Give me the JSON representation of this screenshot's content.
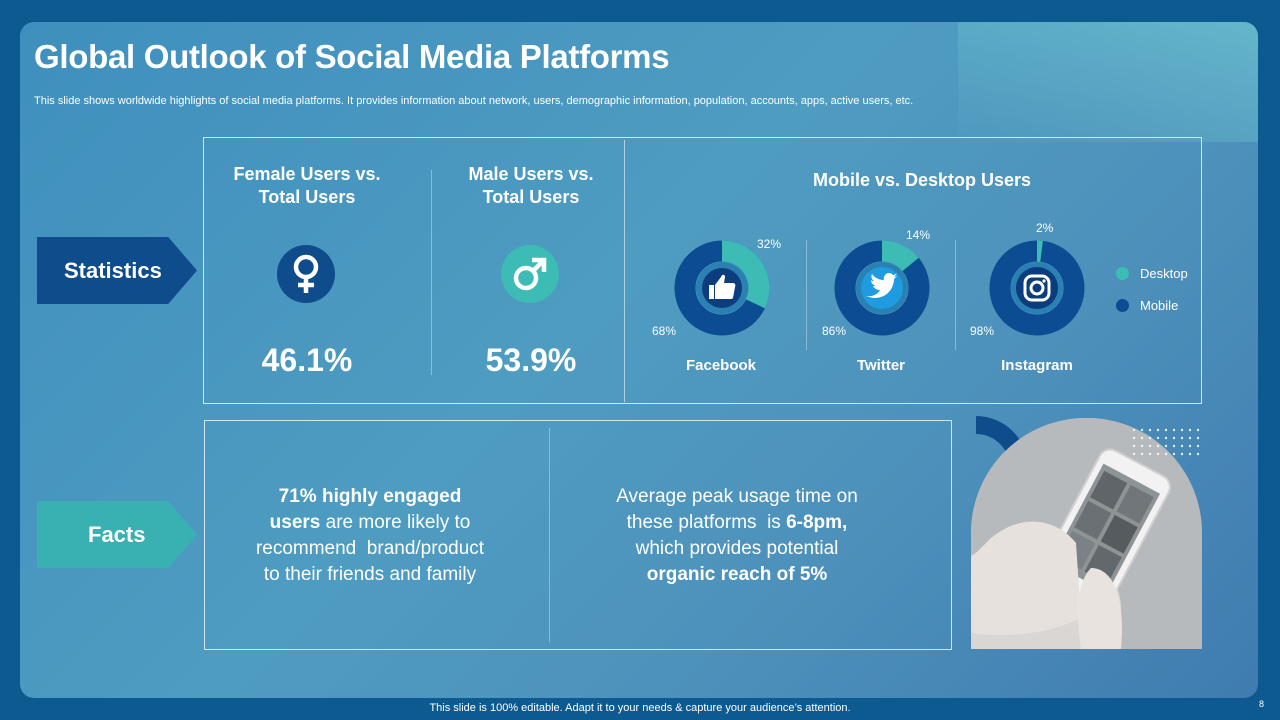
{
  "slide": {
    "title": "Global Outlook of Social Media Platforms",
    "subtitle": "This slide shows worldwide highlights of social media platforms. It provides information about network, users, demographic information, population, accounts, apps, active users, etc.",
    "footer": "This slide is 100% editable. Adapt it to your needs & capture your audience’s attention.",
    "page_number": "8"
  },
  "labels": {
    "statistics": "Statistics",
    "facts": "Facts"
  },
  "gender": {
    "female": {
      "heading_line1": "Female Users vs.",
      "heading_line2": "Total Users",
      "value": "46.1%",
      "icon": "female-symbol-icon"
    },
    "male": {
      "heading_line1": "Male Users vs.",
      "heading_line2": "Total Users",
      "value": "53.9%",
      "icon": "male-symbol-icon"
    }
  },
  "facts": {
    "left": {
      "bold1": "71% highly engaged",
      "bold2": "users",
      "rest2": " are more likely to",
      "line3": "recommend  brand/product",
      "line4": "to their friends and family"
    },
    "right": {
      "line1": "Average peak usage time on",
      "line2a": "these platforms  is ",
      "line2b": "6-8pm,",
      "line3": "which provides potential",
      "line4": "organic reach of 5%"
    }
  },
  "colors": {
    "desktop": "#3cbcb4",
    "mobile": "#0b4c93",
    "dark_navy": "#0e4c8c",
    "teal_arrow": "#39b1b3"
  },
  "chart_data": {
    "type": "pie",
    "title": "Mobile vs. Desktop Users",
    "legend": [
      {
        "name": "Desktop",
        "color": "#3cbcb4"
      },
      {
        "name": "Mobile",
        "color": "#0b4c93"
      }
    ],
    "charts": [
      {
        "platform": "Facebook",
        "icon": "thumbs-up-icon",
        "desktop": 32,
        "mobile": 68,
        "desktop_label": "32%",
        "mobile_label": "68%"
      },
      {
        "platform": "Twitter",
        "icon": "twitter-bird-icon",
        "desktop": 14,
        "mobile": 86,
        "desktop_label": "14%",
        "mobile_label": "86%"
      },
      {
        "platform": "Instagram",
        "icon": "instagram-icon",
        "desktop": 2,
        "mobile": 98,
        "desktop_label": "2%",
        "mobile_label": "98%"
      }
    ]
  }
}
